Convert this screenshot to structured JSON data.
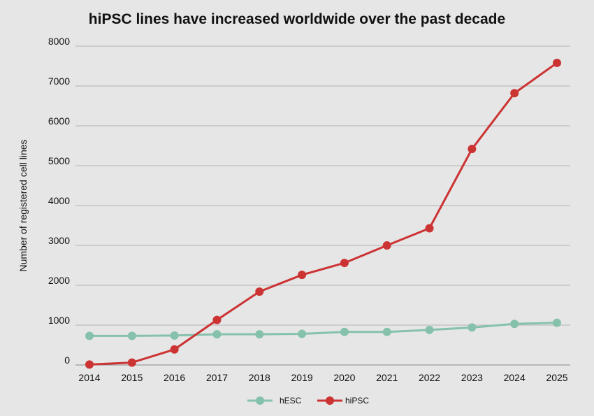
{
  "chart_data": {
    "type": "line",
    "title": "hiPSC lines have increased worldwide over the past decade",
    "xlabel": "",
    "ylabel": "Number of registered cell lines",
    "categories": [
      "2014",
      "2015",
      "2016",
      "2017",
      "2018",
      "2019",
      "2020",
      "2021",
      "2022",
      "2023",
      "2024",
      "2025"
    ],
    "ylim": [
      0,
      8000
    ],
    "yticks": [
      "0",
      "1000",
      "2000",
      "3000",
      "4000",
      "5000",
      "6000",
      "7000",
      "8000"
    ],
    "grid": true,
    "legend_position": "bottom-center",
    "series": [
      {
        "name": "hESC",
        "color": "#86c2ab",
        "values": [
          730,
          730,
          740,
          770,
          770,
          780,
          830,
          830,
          880,
          940,
          1030,
          1060
        ]
      },
      {
        "name": "hiPSC",
        "color": "#cc3333",
        "values": [
          10,
          60,
          390,
          1130,
          1840,
          2260,
          2560,
          3000,
          3430,
          5420,
          6820,
          7580
        ]
      }
    ]
  }
}
